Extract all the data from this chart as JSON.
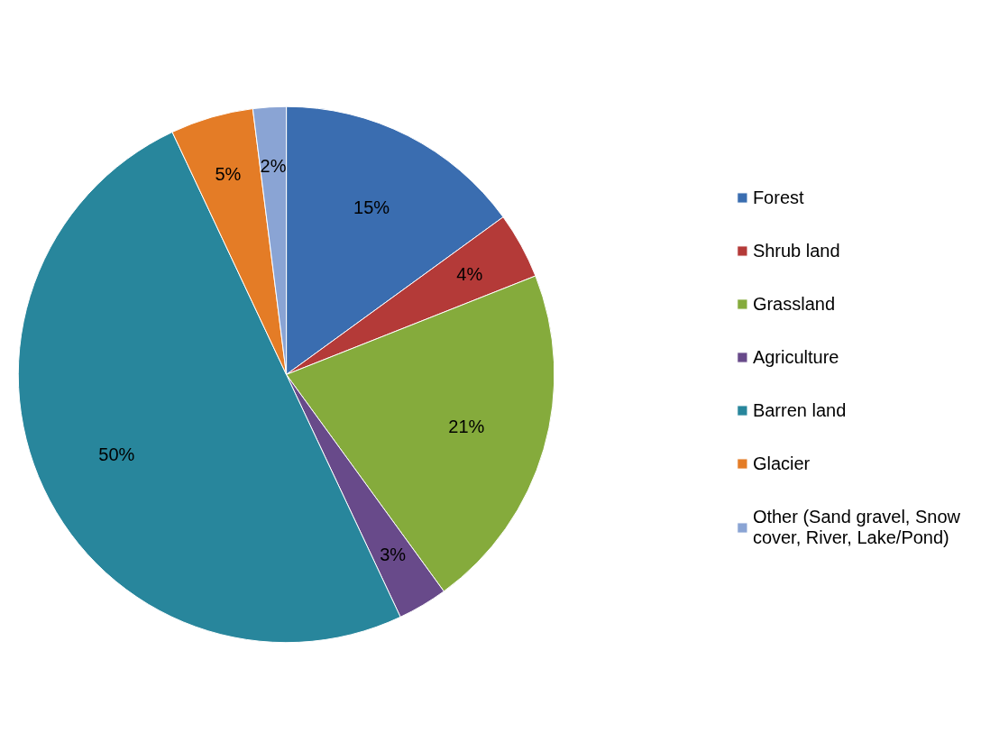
{
  "chart_data": {
    "type": "pie",
    "categories": [
      "Forest",
      "Shrub land",
      "Grassland",
      "Agriculture",
      "Barren land",
      "Glacier",
      "Other (Sand gravel, Snow cover, River, Lake/Pond)"
    ],
    "values": [
      15,
      4,
      21,
      3,
      50,
      5,
      2
    ],
    "colors": [
      "#3a6db0",
      "#b43a38",
      "#85ab3c",
      "#684a8a",
      "#28869c",
      "#e47c26",
      "#8aa4d4"
    ],
    "value_labels": [
      "15%",
      "4%",
      "21%",
      "3%",
      "50%",
      "5%",
      "2%"
    ],
    "legend": "right"
  }
}
